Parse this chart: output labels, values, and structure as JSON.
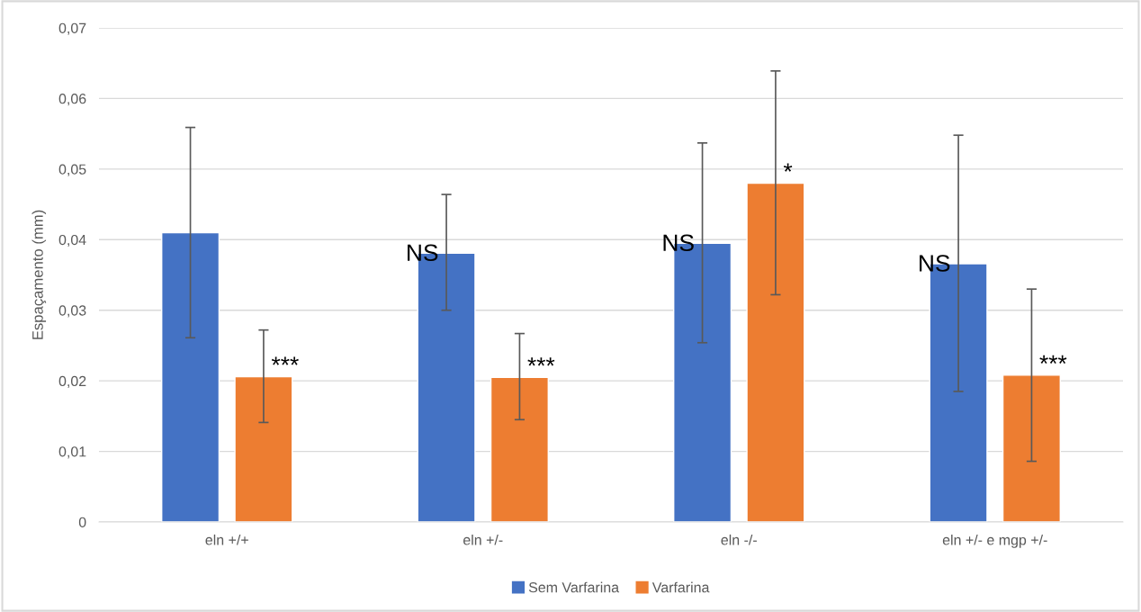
{
  "chart_data": {
    "type": "bar",
    "ylabel": "Espaçamento (mm)",
    "categories": [
      "eln +/+",
      "eln +/-",
      "eln -/-",
      "eln +/- e mgp +/-"
    ],
    "series": [
      {
        "name": "Sem Varfarina",
        "color": "#4472c4",
        "values": [
          0.041,
          0.0381,
          0.0395,
          0.0366
        ],
        "errors": [
          [
            0.0261,
            0.0559
          ],
          [
            0.03,
            0.0464
          ],
          [
            0.0254,
            0.0537
          ],
          [
            0.0185,
            0.0548
          ]
        ]
      },
      {
        "name": "Varfarina",
        "color": "#ed7d31",
        "values": [
          0.0206,
          0.0205,
          0.048,
          0.0208
        ],
        "errors": [
          [
            0.0141,
            0.0272
          ],
          [
            0.0145,
            0.0267
          ],
          [
            0.0322,
            0.0639
          ],
          [
            0.0086,
            0.033
          ]
        ]
      }
    ],
    "ylim": [
      0,
      0.07
    ],
    "yticks": [
      {
        "value": 0,
        "label": "0"
      },
      {
        "value": 0.01,
        "label": "0,01"
      },
      {
        "value": 0.02,
        "label": "0,02"
      },
      {
        "value": 0.03,
        "label": "0,03"
      },
      {
        "value": 0.04,
        "label": "0,04"
      },
      {
        "value": 0.05,
        "label": "0,05"
      },
      {
        "value": 0.06,
        "label": "0,06"
      },
      {
        "value": 0.07,
        "label": "0,07"
      }
    ],
    "grid": "y",
    "legend": "bottom",
    "annotations": [
      "***",
      "NS",
      "***",
      "NS",
      "*",
      "NS",
      "***"
    ]
  }
}
